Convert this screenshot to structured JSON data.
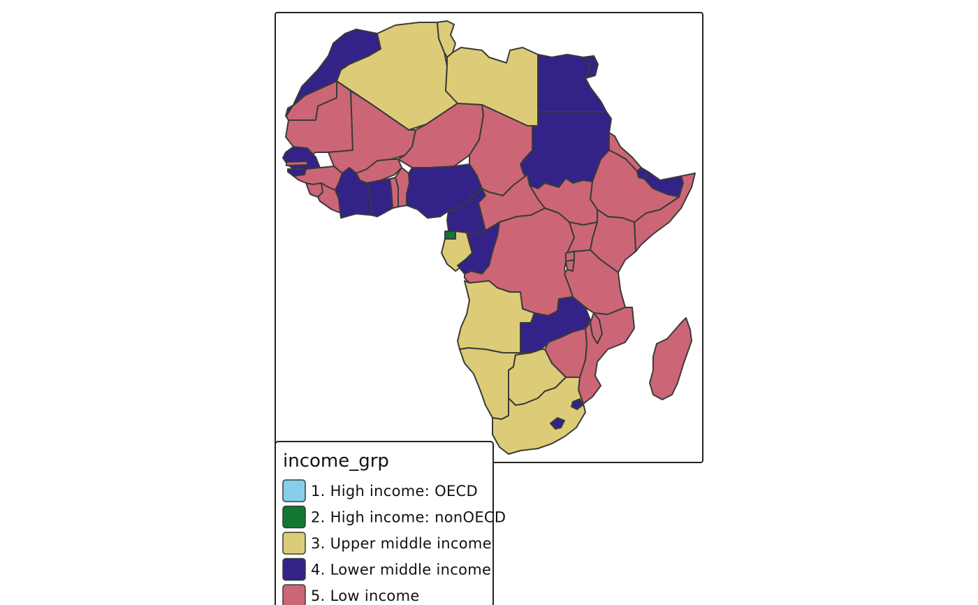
{
  "legend": {
    "title": "income_grp",
    "items": [
      {
        "label": "1. High income: OECD",
        "color": "#87CEEB"
      },
      {
        "label": "2. High income: nonOECD",
        "color": "#117733"
      },
      {
        "label": "3. Upper middle income",
        "color": "#DDCC77"
      },
      {
        "label": "4. Lower middle income",
        "color": "#332288"
      },
      {
        "label": "5. Low income",
        "color": "#CC6677"
      }
    ]
  },
  "countries": [
    {
      "name": "Morocco",
      "income_group": "4. Lower middle income"
    },
    {
      "name": "Western Sahara",
      "income_group": "5. Low income"
    },
    {
      "name": "Algeria",
      "income_group": "3. Upper middle income"
    },
    {
      "name": "Tunisia",
      "income_group": "3. Upper middle income"
    },
    {
      "name": "Libya",
      "income_group": "3. Upper middle income"
    },
    {
      "name": "Egypt",
      "income_group": "4. Lower middle income"
    },
    {
      "name": "Mauritania",
      "income_group": "5. Low income"
    },
    {
      "name": "Mali",
      "income_group": "5. Low income"
    },
    {
      "name": "Niger",
      "income_group": "5. Low income"
    },
    {
      "name": "Chad",
      "income_group": "5. Low income"
    },
    {
      "name": "Sudan",
      "income_group": "4. Lower middle income"
    },
    {
      "name": "Eritrea",
      "income_group": "5. Low income"
    },
    {
      "name": "Djibouti",
      "income_group": "4. Lower middle income"
    },
    {
      "name": "Somaliland",
      "income_group": "4. Lower middle income"
    },
    {
      "name": "Somalia",
      "income_group": "5. Low income"
    },
    {
      "name": "Ethiopia",
      "income_group": "5. Low income"
    },
    {
      "name": "South Sudan",
      "income_group": "5. Low income"
    },
    {
      "name": "Senegal",
      "income_group": "4. Lower middle income"
    },
    {
      "name": "Gambia",
      "income_group": "5. Low income"
    },
    {
      "name": "Guinea-Bissau",
      "income_group": "4. Lower middle income"
    },
    {
      "name": "Guinea",
      "income_group": "5. Low income"
    },
    {
      "name": "Sierra Leone",
      "income_group": "5. Low income"
    },
    {
      "name": "Liberia",
      "income_group": "5. Low income"
    },
    {
      "name": "Burkina Faso",
      "income_group": "5. Low income"
    },
    {
      "name": "Cote d'Ivoire",
      "income_group": "4. Lower middle income"
    },
    {
      "name": "Ghana",
      "income_group": "4. Lower middle income"
    },
    {
      "name": "Togo",
      "income_group": "5. Low income"
    },
    {
      "name": "Benin",
      "income_group": "5. Low income"
    },
    {
      "name": "Nigeria",
      "income_group": "4. Lower middle income"
    },
    {
      "name": "Cameroon",
      "income_group": "4. Lower middle income"
    },
    {
      "name": "Central African Republic",
      "income_group": "5. Low income"
    },
    {
      "name": "Equatorial Guinea",
      "income_group": "2. High income: nonOECD"
    },
    {
      "name": "Gabon",
      "income_group": "3. Upper middle income"
    },
    {
      "name": "Republic of the Congo",
      "income_group": "4. Lower middle income"
    },
    {
      "name": "Democratic Republic of the Congo",
      "income_group": "5. Low income"
    },
    {
      "name": "Uganda",
      "income_group": "5. Low income"
    },
    {
      "name": "Kenya",
      "income_group": "5. Low income"
    },
    {
      "name": "Rwanda",
      "income_group": "5. Low income"
    },
    {
      "name": "Burundi",
      "income_group": "5. Low income"
    },
    {
      "name": "Tanzania",
      "income_group": "5. Low income"
    },
    {
      "name": "Angola",
      "income_group": "3. Upper middle income"
    },
    {
      "name": "Zambia",
      "income_group": "4. Lower middle income"
    },
    {
      "name": "Malawi",
      "income_group": "5. Low income"
    },
    {
      "name": "Mozambique",
      "income_group": "5. Low income"
    },
    {
      "name": "Zimbabwe",
      "income_group": "5. Low income"
    },
    {
      "name": "Namibia",
      "income_group": "3. Upper middle income"
    },
    {
      "name": "Botswana",
      "income_group": "3. Upper middle income"
    },
    {
      "name": "South Africa",
      "income_group": "3. Upper middle income"
    },
    {
      "name": "Swaziland",
      "income_group": "4. Lower middle income"
    },
    {
      "name": "Lesotho",
      "income_group": "4. Lower middle income"
    },
    {
      "name": "Madagascar",
      "income_group": "5. Low income"
    }
  ]
}
